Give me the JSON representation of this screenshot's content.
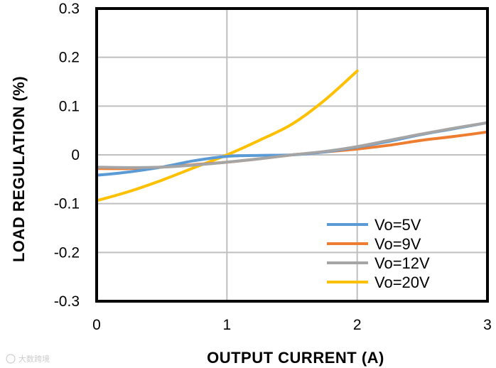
{
  "chart_data": {
    "type": "line",
    "xlabel": "OUTPUT  CURRENT  (A)",
    "ylabel": "LOAD REGULATION  (%)",
    "xlim": [
      0,
      3
    ],
    "ylim": [
      -0.3,
      0.3
    ],
    "x_ticks": [
      "0",
      "1",
      "2",
      "3"
    ],
    "y_ticks": [
      "0.3",
      "0.2",
      "0.1",
      "0",
      "-0.1",
      "-0.2",
      "-0.3"
    ],
    "grid": true,
    "legend_position": "bottom-right",
    "series": [
      {
        "name": "Vo=5V",
        "color": "#5B9BD5",
        "x": [
          0,
          0.25,
          0.5,
          0.75,
          1.0,
          1.25,
          1.5,
          1.75,
          2.0,
          2.25,
          2.5,
          2.75,
          3.0
        ],
        "y": [
          -0.042,
          -0.035,
          -0.025,
          -0.012,
          -0.003,
          -0.001,
          0.0,
          0.006,
          0.016,
          0.028,
          0.042,
          0.054,
          0.066
        ]
      },
      {
        "name": "Vo=9V",
        "color": "#ED7D31",
        "x": [
          0,
          0.25,
          0.5,
          0.75,
          1.0,
          1.25,
          1.5,
          1.75,
          2.0,
          2.25,
          2.5,
          2.75,
          3.0
        ],
        "y": [
          -0.028,
          -0.028,
          -0.025,
          -0.02,
          -0.015,
          -0.008,
          0.0,
          0.006,
          0.012,
          0.02,
          0.03,
          0.038,
          0.047
        ]
      },
      {
        "name": "Vo=12V",
        "color": "#A5A5A5",
        "x": [
          0,
          0.25,
          0.5,
          0.75,
          1.0,
          1.25,
          1.5,
          1.75,
          2.0,
          2.25,
          2.5,
          2.75,
          3.0
        ],
        "y": [
          -0.025,
          -0.026,
          -0.025,
          -0.021,
          -0.015,
          -0.008,
          0.0,
          0.007,
          0.017,
          0.03,
          0.043,
          0.055,
          0.066
        ]
      },
      {
        "name": "Vo=20V",
        "color": "#FFC000",
        "x": [
          0,
          0.25,
          0.5,
          0.75,
          1.0,
          1.25,
          1.5,
          1.75,
          2.0
        ],
        "y": [
          -0.094,
          -0.075,
          -0.052,
          -0.026,
          0.0,
          0.03,
          0.063,
          0.112,
          0.172
        ]
      }
    ]
  },
  "watermark": "大数跨境"
}
